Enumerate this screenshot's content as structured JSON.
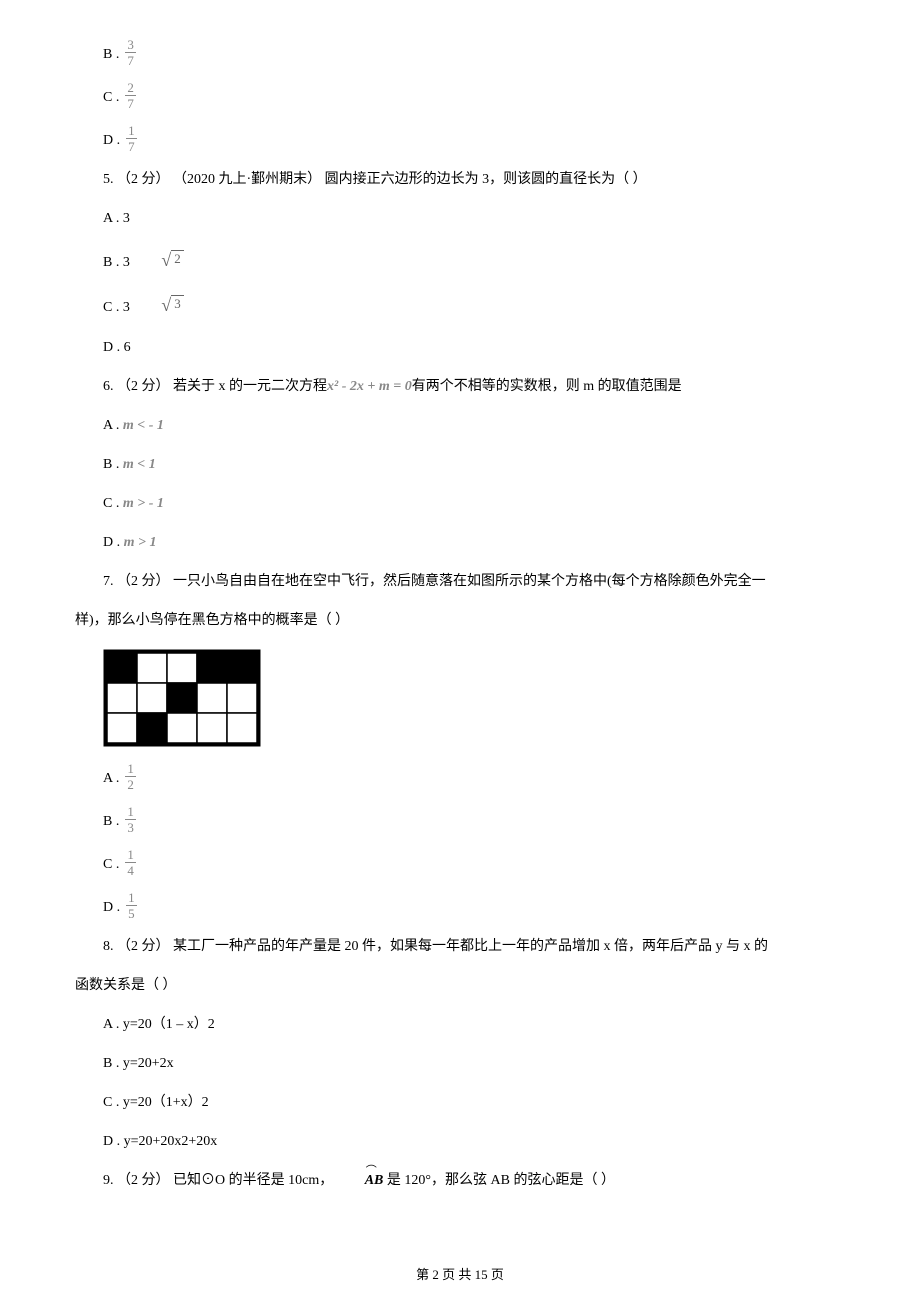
{
  "q4_opts": {
    "b_letter": "B .",
    "b_num": "3",
    "b_den": "7",
    "c_letter": "C .",
    "c_num": "2",
    "c_den": "7",
    "d_letter": "D .",
    "d_num": "1",
    "d_den": "7"
  },
  "q5": {
    "stem": "5.  （2 分） （2020 九上·鄞州期末） 圆内接正六边形的边长为 3，则该圆的直径长为（    ）",
    "a": "A .  3",
    "b_letter": "B .  3",
    "b_rad": "2",
    "c_letter": "C .  3",
    "c_rad": "3",
    "d": "D .  6"
  },
  "q6": {
    "stem_pre": "6.  （2 分）  若关于 x 的一元二次方程",
    "stem_math": "x² - 2x + m = 0",
    "stem_post": "有两个不相等的实数根，则 m 的取值范围是",
    "a_letter": "A .  ",
    "a_math": "m < - 1",
    "b_letter": "B .  ",
    "b_math": "m < 1",
    "c_letter": "C .  ",
    "c_math": "m > - 1",
    "d_letter": "D .  ",
    "d_math": "m > 1"
  },
  "q7": {
    "stem1": "7.  （2 分）  一只小鸟自由自在地在空中飞行，然后随意落在如图所示的某个方格中(每个方格除颜色外完全一",
    "stem2": "样)，那么小鸟停在黑色方格中的概率是（    ）",
    "grid": {
      "cols": 5,
      "rows": 3,
      "cell_size": 30,
      "border_color": "#000000",
      "fill_black": "#000000",
      "fill_white": "#ffffff",
      "pattern": [
        [
          1,
          0,
          0,
          1,
          1
        ],
        [
          0,
          0,
          1,
          0,
          0
        ],
        [
          0,
          1,
          0,
          0,
          0
        ]
      ]
    },
    "a_letter": "A .",
    "a_num": "1",
    "a_den": "2",
    "b_letter": "B .",
    "b_num": "1",
    "b_den": "3",
    "c_letter": "C .",
    "c_num": "1",
    "c_den": "4",
    "d_letter": "D .",
    "d_num": "1",
    "d_den": "5"
  },
  "q8": {
    "stem1": "8.  （2 分）  某工厂一种产品的年产量是 20 件，如果每一年都比上一年的产品增加 x 倍，两年后产品 y 与 x 的",
    "stem2": "函数关系是（    ）",
    "a": "A .  y=20（1 – x）2",
    "b": "B .  y=20+2x",
    "c": "C .  y=20（1+x）2",
    "d": "D .  y=20+20x2+20x"
  },
  "q9": {
    "stem_pre": "9.  （2 分）  已知⊙O 的半径是 10cm，  ",
    "arc": "AB",
    "stem_post": "  是 120°，那么弦 AB 的弦心距是（    ）"
  },
  "pagenum": "第 2 页 共 15 页"
}
